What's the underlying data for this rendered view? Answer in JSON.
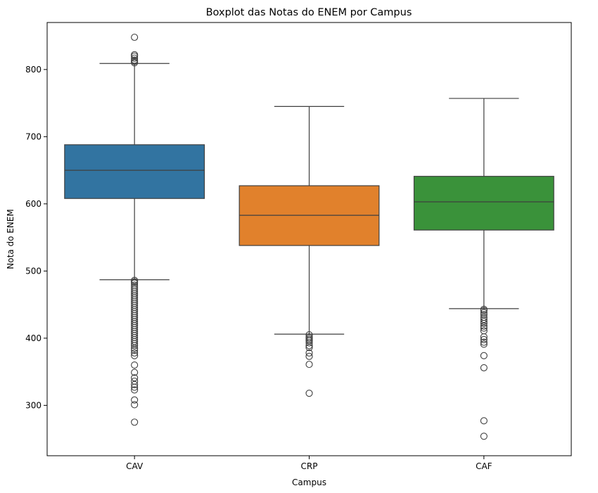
{
  "chart_data": {
    "type": "boxplot",
    "title": "Boxplot das Notas do ENEM por Campus",
    "xlabel": "Campus",
    "ylabel": "Nota do ENEM",
    "ylim": [
      225,
      870
    ],
    "yticks": [
      300,
      400,
      500,
      600,
      700,
      800
    ],
    "grid": false,
    "categories": [
      "CAV",
      "CRP",
      "CAF"
    ],
    "series": [
      {
        "category": "CAV",
        "color": "#3274a1",
        "whisker_low": 487,
        "q1": 608,
        "median": 650,
        "q3": 688,
        "whisker_high": 809,
        "outliers": [
          848,
          822,
          820,
          817,
          814,
          812,
          810,
          486,
          484,
          482,
          479,
          476,
          473,
          470,
          467,
          464,
          461,
          458,
          455,
          452,
          449,
          446,
          443,
          440,
          437,
          434,
          431,
          428,
          425,
          422,
          419,
          416,
          413,
          410,
          407,
          404,
          401,
          398,
          395,
          392,
          389,
          385,
          382,
          378,
          374,
          360,
          349,
          341,
          336,
          331,
          327,
          323,
          308,
          301,
          275
        ]
      },
      {
        "category": "CRP",
        "color": "#e1812c",
        "whisker_low": 406,
        "q1": 538,
        "median": 583,
        "q3": 627,
        "whisker_high": 745,
        "outliers": [
          405,
          402,
          400,
          398,
          396,
          393,
          389,
          386,
          378,
          373,
          361,
          318
        ]
      },
      {
        "category": "CAF",
        "color": "#3a923a",
        "whisker_low": 444,
        "q1": 561,
        "median": 603,
        "q3": 641,
        "whisker_high": 757,
        "outliers": [
          443,
          441,
          438,
          435,
          431,
          428,
          425,
          422,
          418,
          415,
          411,
          402,
          398,
          394,
          391,
          374,
          356,
          277,
          254
        ]
      }
    ]
  }
}
